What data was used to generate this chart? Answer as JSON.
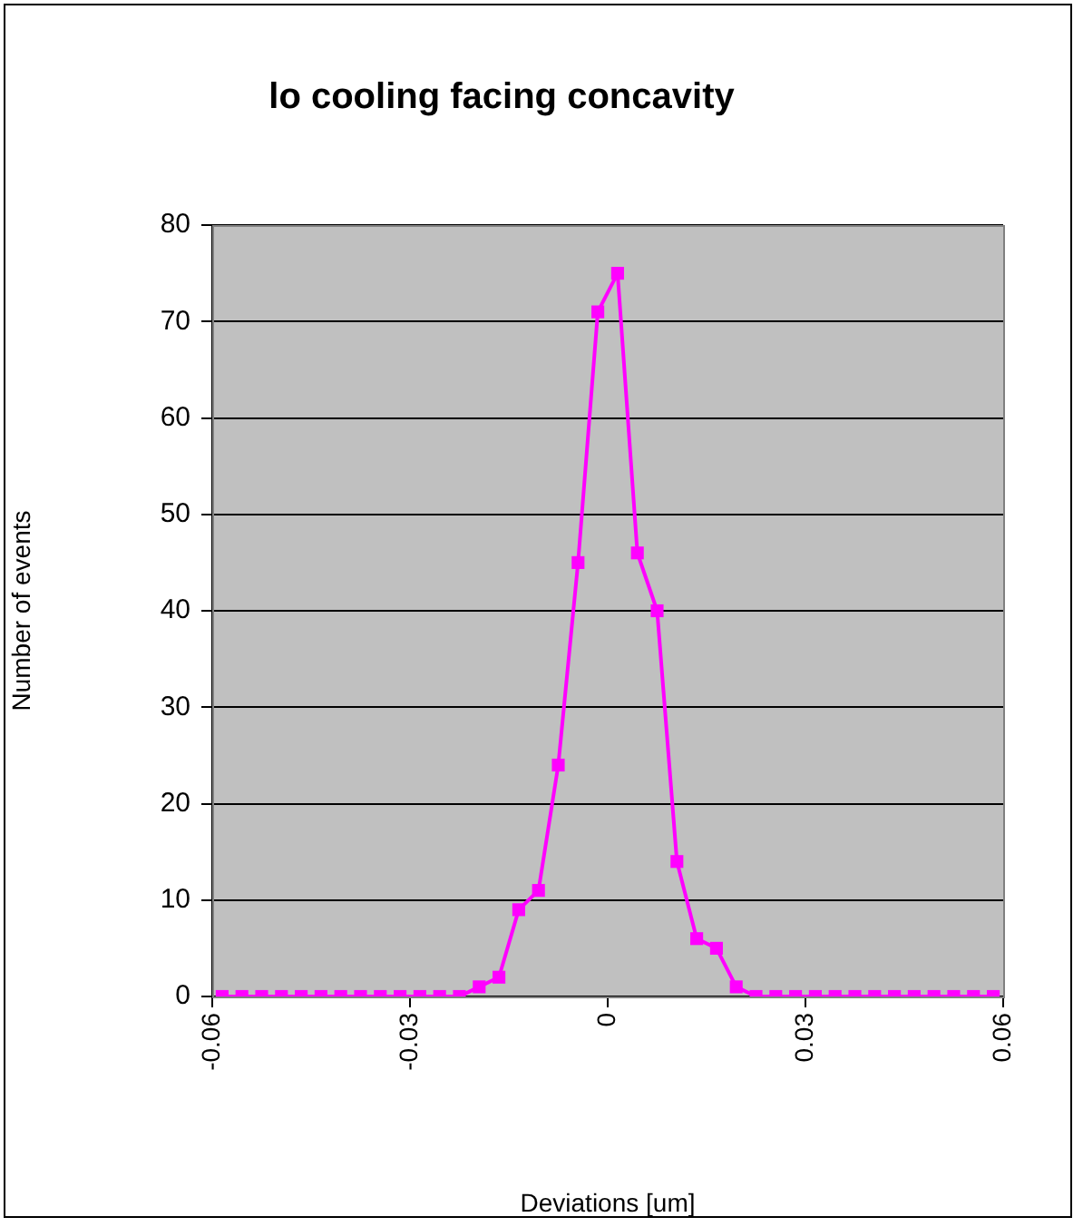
{
  "chart_data": {
    "type": "line",
    "title": "lo cooling facing concavity",
    "xlabel": "Deviations [um]",
    "ylabel": "Number of events",
    "x": [
      -0.0585,
      -0.0555,
      -0.0525,
      -0.0495,
      -0.0465,
      -0.0435,
      -0.0405,
      -0.0375,
      -0.0345,
      -0.0315,
      -0.0285,
      -0.0255,
      -0.0225,
      -0.0195,
      -0.0165,
      -0.0135,
      -0.0105,
      -0.0075,
      -0.0045,
      -0.0015,
      0.0015,
      0.0045,
      0.0075,
      0.0105,
      0.0135,
      0.0165,
      0.0195,
      0.0225,
      0.0255,
      0.0285,
      0.0315,
      0.0345,
      0.0375,
      0.0405,
      0.0435,
      0.0465,
      0.0495,
      0.0525,
      0.0555,
      0.0585
    ],
    "series": [
      {
        "color": "#ff00ff",
        "values": [
          0,
          0,
          0,
          0,
          0,
          0,
          0,
          0,
          0,
          0,
          0,
          0,
          0,
          1,
          2,
          9,
          11,
          24,
          45,
          71,
          75,
          46,
          40,
          14,
          6,
          5,
          1,
          0,
          0,
          0,
          0,
          0,
          0,
          0,
          0,
          0,
          0,
          0,
          0,
          0
        ]
      }
    ],
    "xlim": [
      -0.06,
      0.06
    ],
    "xticks": [
      -0.06,
      -0.03,
      0,
      0.03,
      0.06
    ],
    "ylim": [
      0,
      80
    ],
    "yticks": [
      0,
      10,
      20,
      30,
      40,
      50,
      60,
      70,
      80
    ],
    "grid": "y",
    "legend": false,
    "marker": "square",
    "line_style": "solid"
  }
}
